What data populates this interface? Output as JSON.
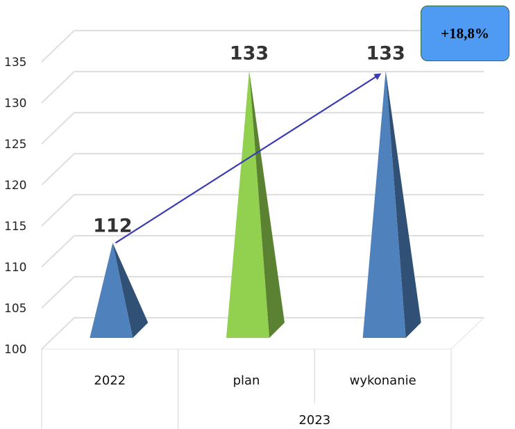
{
  "chart_data": {
    "type": "bar",
    "shape": "pyramid-3d",
    "categories": [
      "2022",
      "plan",
      "wykonanie"
    ],
    "category_groups": [
      {
        "label": "",
        "span": 1
      },
      {
        "label": "2023",
        "span": 2
      }
    ],
    "values": [
      112,
      133,
      133
    ],
    "data_labels": [
      "112",
      "133",
      "133"
    ],
    "colors": [
      "#4f81bd",
      "#92d050",
      "#4f81bd"
    ],
    "ylim": [
      100,
      135
    ],
    "yticks": [
      100,
      105,
      110,
      115,
      120,
      125,
      130,
      135
    ],
    "grid": true,
    "legend": "none",
    "annotation": {
      "text": "+18,8%",
      "arrow_from": "2022",
      "arrow_to": "wykonanie",
      "arrow_color": "#3b3bb3",
      "box_color": "#4f9bf3"
    }
  }
}
